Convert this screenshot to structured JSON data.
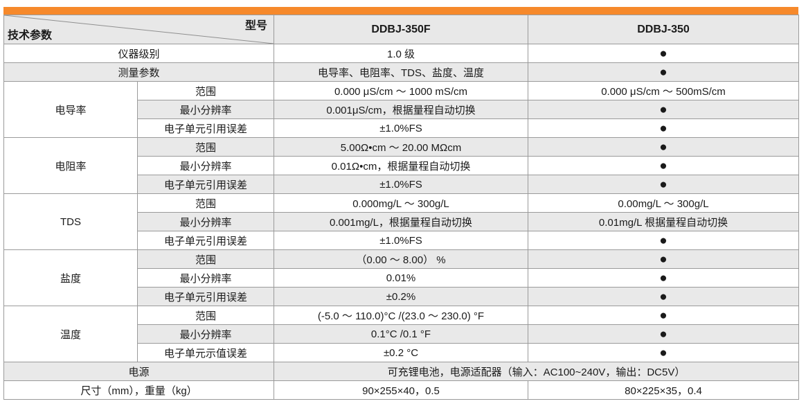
{
  "colors": {
    "accent": "#f6892b",
    "row_shade": "#e9e9e9",
    "header_bg": "#e8e8e8",
    "border": "#9a9a9a",
    "text": "#1a1a1a"
  },
  "bullet_glyph": "●",
  "header": {
    "corner_top_label": "型号",
    "corner_bottom_label": "技术参数",
    "model_columns": [
      "DDBJ-350F",
      "DDBJ-350"
    ]
  },
  "rows": [
    {
      "label": "仪器级别",
      "label_span": 2,
      "cells": [
        {
          "text": "1.0 级"
        },
        {
          "text": "●"
        }
      ]
    },
    {
      "label": "测量参数",
      "label_span": 2,
      "cells": [
        {
          "text": "电导率、电阻率、TDS、盐度、温度"
        },
        {
          "text": "●"
        }
      ]
    },
    {
      "group": {
        "text": "电导率",
        "rowspan": 3
      },
      "label": "范围",
      "cells": [
        {
          "text": "0.000 μS/cm ～ 1000 mS/cm"
        },
        {
          "text": "0.000 μS/cm ～ 500mS/cm"
        }
      ]
    },
    {
      "label": "最小分辨率",
      "cells": [
        {
          "text": "0.001μS/cm，根据量程自动切换"
        },
        {
          "text": "●"
        }
      ]
    },
    {
      "label": "电子单元引用误差",
      "cells": [
        {
          "text": "±1.0%FS"
        },
        {
          "text": "●"
        }
      ]
    },
    {
      "group": {
        "text": "电阻率",
        "rowspan": 3
      },
      "label": "范围",
      "cells": [
        {
          "text": "5.00Ω•cm ～ 20.00 MΩcm"
        },
        {
          "text": "●"
        }
      ]
    },
    {
      "label": "最小分辨率",
      "cells": [
        {
          "text": "0.01Ω•cm，根据量程自动切换"
        },
        {
          "text": "●"
        }
      ]
    },
    {
      "label": "电子单元引用误差",
      "cells": [
        {
          "text": "±1.0%FS"
        },
        {
          "text": "●"
        }
      ]
    },
    {
      "group": {
        "text": "TDS",
        "rowspan": 3
      },
      "label": "范围",
      "cells": [
        {
          "text": "0.000mg/L ～ 300g/L"
        },
        {
          "text": "0.00mg/L ～ 300g/L"
        }
      ]
    },
    {
      "label": "最小分辨率",
      "cells": [
        {
          "text": "0.001mg/L，根据量程自动切换"
        },
        {
          "text": "0.01mg/L 根据量程自动切换"
        }
      ]
    },
    {
      "label": "电子单元引用误差",
      "cells": [
        {
          "text": "±1.0%FS"
        },
        {
          "text": "●"
        }
      ]
    },
    {
      "group": {
        "text": "盐度",
        "rowspan": 3
      },
      "label": "范围",
      "cells": [
        {
          "text": "（0.00 ～ 8.00） %"
        },
        {
          "text": "●"
        }
      ]
    },
    {
      "label": "最小分辨率",
      "cells": [
        {
          "text": "0.01%"
        },
        {
          "text": "●"
        }
      ]
    },
    {
      "label": "电子单元引用误差",
      "cells": [
        {
          "text": "±0.2%"
        },
        {
          "text": "●"
        }
      ]
    },
    {
      "group": {
        "text": "温度",
        "rowspan": 3
      },
      "label": "范围",
      "cells": [
        {
          "text": "(-5.0 ～ 110.0)°C /(23.0 ～ 230.0) °F"
        },
        {
          "text": "●"
        }
      ]
    },
    {
      "label": "最小分辨率",
      "cells": [
        {
          "text": "0.1°C /0.1 °F"
        },
        {
          "text": "●"
        }
      ]
    },
    {
      "label": "电子单元示值误差",
      "cells": [
        {
          "text": "±0.2 °C"
        },
        {
          "text": "●"
        }
      ]
    },
    {
      "label": "电源",
      "label_span": 2,
      "cells": [
        {
          "text": "可充锂电池，电源适配器（输入：AC100~240V，输出：DC5V）",
          "span": 2
        }
      ]
    },
    {
      "label": "尺寸（mm），重量（kg）",
      "label_span": 2,
      "cells": [
        {
          "text": "90×255×40，0.5"
        },
        {
          "text": "80×225×35，0.4"
        }
      ]
    }
  ]
}
